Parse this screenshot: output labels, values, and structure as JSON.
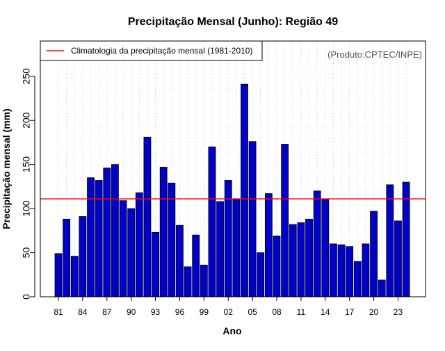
{
  "chart_data": {
    "type": "bar",
    "title": "Precipitação Mensal (Junho): Região 49",
    "xlabel": "Ano",
    "ylabel": "Precipitação mensal (mm)",
    "credit": "(Produto:CPTEC/INPE)",
    "ylim": [
      0,
      290
    ],
    "y_ticks": [
      0,
      50,
      100,
      150,
      200,
      250
    ],
    "x_tick_labels": [
      "81",
      "84",
      "87",
      "90",
      "93",
      "96",
      "99",
      "02",
      "05",
      "08",
      "11",
      "14",
      "17",
      "20",
      "23"
    ],
    "grid": "vertical-dotted",
    "legend_position": "top-left",
    "climatology": {
      "label": "Climatologia da precipitação mensal (1981-2010)",
      "value": 111,
      "color": "#ff0000"
    },
    "bar_color": "#0000cd",
    "categories": [
      "1981",
      "1982",
      "1983",
      "1984",
      "1985",
      "1986",
      "1987",
      "1988",
      "1989",
      "1990",
      "1991",
      "1992",
      "1993",
      "1994",
      "1995",
      "1996",
      "1997",
      "1998",
      "1999",
      "2000",
      "2001",
      "2002",
      "2003",
      "2004",
      "2005",
      "2006",
      "2007",
      "2008",
      "2009",
      "2010",
      "2011",
      "2012",
      "2013",
      "2014",
      "2015",
      "2016",
      "2017",
      "2018",
      "2019",
      "2020",
      "2021",
      "2022",
      "2023",
      "2024"
    ],
    "values": [
      49,
      88,
      46,
      91,
      135,
      132,
      146,
      150,
      109,
      100,
      118,
      181,
      73,
      147,
      129,
      81,
      34,
      70,
      36,
      170,
      108,
      132,
      111,
      241,
      176,
      50,
      117,
      69,
      173,
      82,
      84,
      88,
      120,
      111,
      60,
      59,
      57,
      40,
      60,
      97,
      19,
      127,
      86,
      130
    ]
  }
}
